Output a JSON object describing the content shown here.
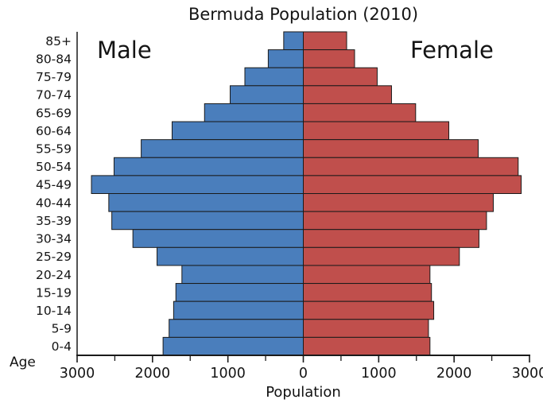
{
  "chart": {
    "title": "Bermuda Population (2010)",
    "male_label": "Male",
    "female_label": "Female",
    "xlabel": "Population",
    "age_axis_label": "Age"
  },
  "chart_data": {
    "type": "bar",
    "subtype": "population-pyramid",
    "title": "Bermuda Population (2010)",
    "xlabel": "Population",
    "ylabel": "Age",
    "categories": [
      "85+",
      "80-84",
      "75-79",
      "70-74",
      "65-69",
      "60-64",
      "55-59",
      "50-54",
      "45-49",
      "40-44",
      "35-39",
      "30-34",
      "25-29",
      "20-24",
      "15-19",
      "10-14",
      "5-9",
      "0-4"
    ],
    "series": [
      {
        "name": "Male",
        "side": "left",
        "color": "#4a7ebc",
        "values": [
          260,
          465,
          775,
          970,
          1310,
          1740,
          2150,
          2510,
          2810,
          2580,
          2540,
          2260,
          1940,
          1610,
          1690,
          1720,
          1780,
          1860
        ]
      },
      {
        "name": "Female",
        "side": "right",
        "color": "#c04f4c",
        "values": [
          575,
          680,
          980,
          1170,
          1490,
          1930,
          2320,
          2850,
          2890,
          2520,
          2430,
          2330,
          2070,
          1680,
          1700,
          1730,
          1660,
          1680
        ]
      }
    ],
    "xlim": [
      -3000,
      3000
    ],
    "x_ticks": {
      "major_values": [
        -3000,
        -2000,
        -1000,
        0,
        1000,
        2000,
        3000
      ],
      "major_labels": [
        "3000",
        "2000",
        "1000",
        "0",
        "1000",
        "2000",
        "3000"
      ],
      "minor_values": [
        -2500,
        -1500,
        -500,
        500,
        1500,
        2500
      ]
    },
    "grid": false,
    "bar_outline_color": "#1a1a1a",
    "axis_color": "#1a1a1a"
  }
}
